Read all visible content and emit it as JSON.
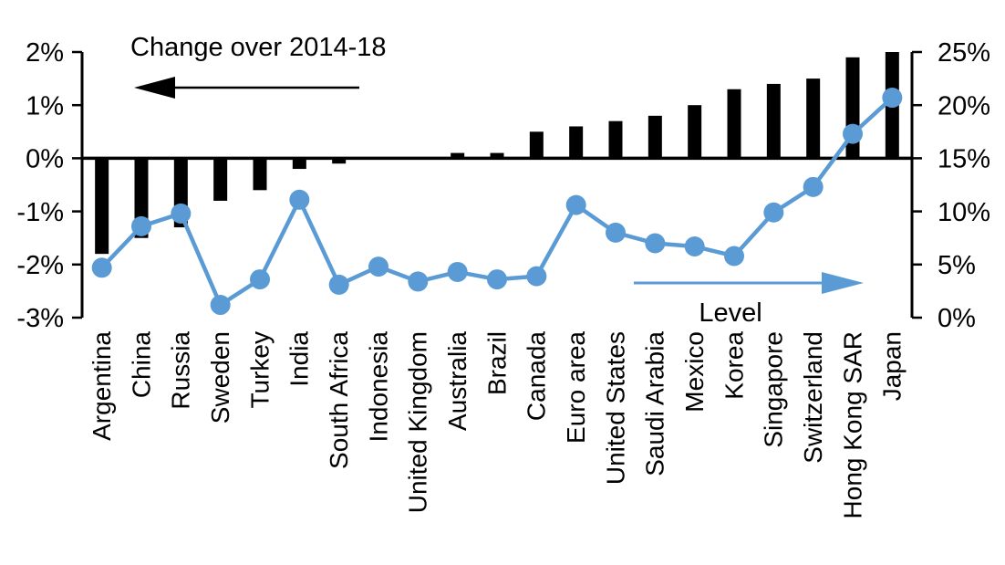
{
  "chart_data": {
    "type": "bar",
    "subtype": "dual-axis bar + line combo",
    "title": "",
    "categories": [
      "Argentina",
      "China",
      "Russia",
      "Sweden",
      "Turkey",
      "India",
      "South Africa",
      "Indonesia",
      "United Kingdom",
      "Australia",
      "Brazil",
      "Canada",
      "Euro area",
      "United States",
      "Saudi Arabia",
      "Mexico",
      "Korea",
      "Singapore",
      "Switzerland",
      "Hong Kong SAR",
      "Japan"
    ],
    "series": [
      {
        "name": "Change over 2014-18",
        "type": "bar",
        "axis": "left",
        "color": "#000000",
        "values": [
          -1.8,
          -1.5,
          -1.3,
          -0.8,
          -0.6,
          -0.2,
          -0.1,
          0,
          0,
          0.1,
          0.1,
          0.5,
          0.6,
          0.7,
          0.8,
          1.0,
          1.3,
          1.4,
          1.5,
          1.9,
          2.0
        ]
      },
      {
        "name": "Level",
        "type": "line",
        "axis": "right",
        "color": "#5b9bd5",
        "values": [
          4.7,
          8.6,
          9.8,
          1.2,
          3.6,
          11.1,
          3.1,
          4.8,
          3.4,
          4.3,
          3.6,
          3.9,
          10.6,
          8.0,
          7.0,
          6.7,
          5.8,
          9.9,
          12.3,
          17.3,
          20.7
        ]
      }
    ],
    "left_axis": {
      "min": -3,
      "max": 2,
      "unit": "%",
      "tick_values": [
        2,
        1,
        0,
        -1,
        -2,
        -3
      ],
      "tick_labels": [
        "2%",
        "1%",
        "0%",
        "-1%",
        "-2%",
        "-3%"
      ]
    },
    "right_axis": {
      "min": 0,
      "max": 25,
      "unit": "%",
      "tick_values": [
        25,
        20,
        15,
        10,
        5,
        0
      ],
      "tick_labels": [
        "25%",
        "20%",
        "15%",
        "10%",
        "5%",
        "0%"
      ]
    },
    "annotations": [
      {
        "text": "Change over 2014-18",
        "arrow": "left",
        "color": "#000000"
      },
      {
        "text": "Level",
        "arrow": "right",
        "color": "#5b9bd5",
        "text_color": "#000000"
      }
    ],
    "grid": false,
    "legend_position": "none",
    "xlabel": "",
    "ylabel_left": "Change over 2014-18",
    "ylabel_right": "Level"
  },
  "colors": {
    "bar": "#000000",
    "line": "#5b9bd5",
    "axis": "#000000",
    "background": "#ffffff"
  }
}
